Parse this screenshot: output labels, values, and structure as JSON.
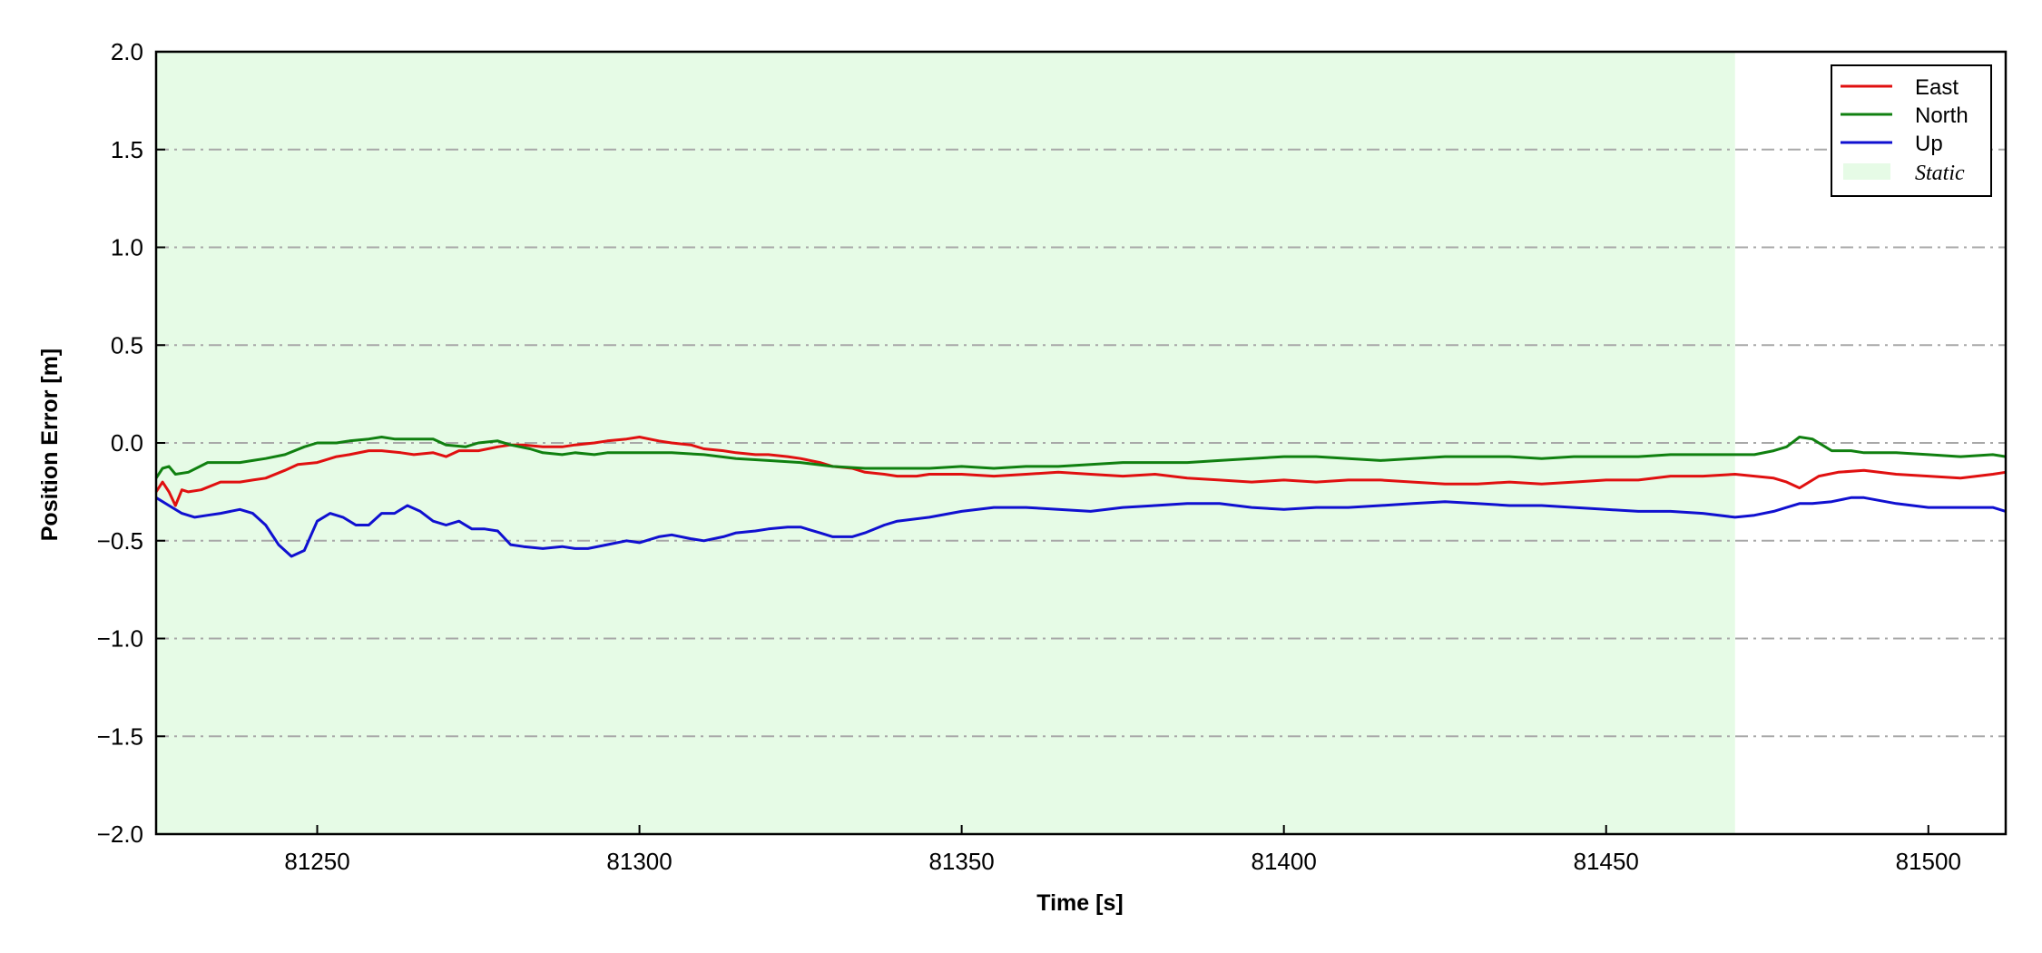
{
  "chart_data": {
    "type": "line",
    "xlabel": "Time [s]",
    "ylabel": "Position Error [m]",
    "xlim": [
      81225,
      81512
    ],
    "ylim": [
      -2.0,
      2.0
    ],
    "x_ticks": [
      "81250",
      "81300",
      "81350",
      "81400",
      "81450",
      "81500"
    ],
    "y_ticks": [
      "2.0",
      "1.5",
      "1.0",
      "0.5",
      "0.0",
      "−0.5",
      "−1.0",
      "−1.5",
      "−2.0"
    ],
    "grid": "horizontal dash-dot",
    "legend_position": "top-right",
    "static_region": {
      "name": "Static",
      "x_start": 81225,
      "x_end": 81470,
      "color": "#e6fbe6"
    },
    "series": [
      {
        "name": "East",
        "color": "#e01010",
        "x": [
          81225,
          81226,
          81227,
          81228,
          81229,
          81230,
          81232,
          81235,
          81238,
          81240,
          81242,
          81245,
          81247,
          81250,
          81253,
          81255,
          81258,
          81260,
          81263,
          81265,
          81268,
          81270,
          81272,
          81275,
          81278,
          81280,
          81282,
          81285,
          81288,
          81290,
          81293,
          81295,
          81298,
          81300,
          81303,
          81305,
          81308,
          81310,
          81313,
          81315,
          81318,
          81320,
          81323,
          81325,
          81328,
          81330,
          81333,
          81335,
          81338,
          81340,
          81343,
          81345,
          81348,
          81350,
          81355,
          81360,
          81365,
          81370,
          81375,
          81380,
          81385,
          81390,
          81395,
          81400,
          81405,
          81410,
          81415,
          81420,
          81425,
          81430,
          81435,
          81440,
          81445,
          81450,
          81455,
          81460,
          81465,
          81470,
          81473,
          81476,
          81478,
          81480,
          81483,
          81486,
          81490,
          81495,
          81500,
          81505,
          81510,
          81512
        ],
        "y": [
          -0.25,
          -0.2,
          -0.25,
          -0.32,
          -0.24,
          -0.25,
          -0.24,
          -0.2,
          -0.2,
          -0.19,
          -0.18,
          -0.14,
          -0.11,
          -0.1,
          -0.07,
          -0.06,
          -0.04,
          -0.04,
          -0.05,
          -0.06,
          -0.05,
          -0.07,
          -0.04,
          -0.04,
          -0.02,
          -0.01,
          -0.01,
          -0.02,
          -0.02,
          -0.01,
          0.0,
          0.01,
          0.02,
          0.03,
          0.01,
          0.0,
          -0.01,
          -0.03,
          -0.04,
          -0.05,
          -0.06,
          -0.06,
          -0.07,
          -0.08,
          -0.1,
          -0.12,
          -0.13,
          -0.15,
          -0.16,
          -0.17,
          -0.17,
          -0.16,
          -0.16,
          -0.16,
          -0.17,
          -0.16,
          -0.15,
          -0.16,
          -0.17,
          -0.16,
          -0.18,
          -0.19,
          -0.2,
          -0.19,
          -0.2,
          -0.19,
          -0.19,
          -0.2,
          -0.21,
          -0.21,
          -0.2,
          -0.21,
          -0.2,
          -0.19,
          -0.19,
          -0.17,
          -0.17,
          -0.16,
          -0.17,
          -0.18,
          -0.2,
          -0.23,
          -0.17,
          -0.15,
          -0.14,
          -0.16,
          -0.17,
          -0.18,
          -0.16,
          -0.15
        ]
      },
      {
        "name": "North",
        "color": "#108010",
        "x": [
          81225,
          81226,
          81227,
          81228,
          81230,
          81233,
          81235,
          81238,
          81240,
          81242,
          81245,
          81248,
          81250,
          81253,
          81255,
          81258,
          81260,
          81262,
          81265,
          81268,
          81270,
          81273,
          81275,
          81278,
          81280,
          81283,
          81285,
          81288,
          81290,
          81293,
          81295,
          81298,
          81300,
          81305,
          81310,
          81315,
          81320,
          81325,
          81330,
          81335,
          81340,
          81345,
          81350,
          81355,
          81360,
          81365,
          81370,
          81375,
          81380,
          81385,
          81390,
          81395,
          81400,
          81405,
          81410,
          81415,
          81420,
          81425,
          81430,
          81435,
          81440,
          81445,
          81450,
          81455,
          81460,
          81465,
          81470,
          81473,
          81476,
          81478,
          81480,
          81482,
          81485,
          81488,
          81490,
          81495,
          81500,
          81505,
          81510,
          81512
        ],
        "y": [
          -0.18,
          -0.13,
          -0.12,
          -0.16,
          -0.15,
          -0.1,
          -0.1,
          -0.1,
          -0.09,
          -0.08,
          -0.06,
          -0.02,
          0.0,
          0.0,
          0.01,
          0.02,
          0.03,
          0.02,
          0.02,
          0.02,
          -0.01,
          -0.02,
          0.0,
          0.01,
          -0.01,
          -0.03,
          -0.05,
          -0.06,
          -0.05,
          -0.06,
          -0.05,
          -0.05,
          -0.05,
          -0.05,
          -0.06,
          -0.08,
          -0.09,
          -0.1,
          -0.12,
          -0.13,
          -0.13,
          -0.13,
          -0.12,
          -0.13,
          -0.12,
          -0.12,
          -0.11,
          -0.1,
          -0.1,
          -0.1,
          -0.09,
          -0.08,
          -0.07,
          -0.07,
          -0.08,
          -0.09,
          -0.08,
          -0.07,
          -0.07,
          -0.07,
          -0.08,
          -0.07,
          -0.07,
          -0.07,
          -0.06,
          -0.06,
          -0.06,
          -0.06,
          -0.04,
          -0.02,
          0.03,
          0.02,
          -0.04,
          -0.04,
          -0.05,
          -0.05,
          -0.06,
          -0.07,
          -0.06,
          -0.07
        ]
      },
      {
        "name": "Up",
        "color": "#1010d0",
        "x": [
          81225,
          81227,
          81229,
          81231,
          81233,
          81235,
          81238,
          81240,
          81242,
          81244,
          81246,
          81248,
          81250,
          81252,
          81254,
          81256,
          81258,
          81260,
          81262,
          81264,
          81266,
          81268,
          81270,
          81272,
          81274,
          81276,
          81278,
          81280,
          81282,
          81285,
          81288,
          81290,
          81292,
          81295,
          81298,
          81300,
          81303,
          81305,
          81308,
          81310,
          81313,
          81315,
          81318,
          81320,
          81323,
          81325,
          81328,
          81330,
          81333,
          81335,
          81338,
          81340,
          81345,
          81350,
          81355,
          81360,
          81365,
          81370,
          81375,
          81380,
          81385,
          81390,
          81395,
          81400,
          81405,
          81410,
          81415,
          81420,
          81425,
          81430,
          81435,
          81440,
          81445,
          81450,
          81455,
          81460,
          81465,
          81470,
          81473,
          81476,
          81478,
          81480,
          81482,
          81485,
          81488,
          81490,
          81495,
          81500,
          81505,
          81510,
          81512
        ],
        "y": [
          -0.28,
          -0.32,
          -0.36,
          -0.38,
          -0.37,
          -0.36,
          -0.34,
          -0.36,
          -0.42,
          -0.52,
          -0.58,
          -0.55,
          -0.4,
          -0.36,
          -0.38,
          -0.42,
          -0.42,
          -0.36,
          -0.36,
          -0.32,
          -0.35,
          -0.4,
          -0.42,
          -0.4,
          -0.44,
          -0.44,
          -0.45,
          -0.52,
          -0.53,
          -0.54,
          -0.53,
          -0.54,
          -0.54,
          -0.52,
          -0.5,
          -0.51,
          -0.48,
          -0.47,
          -0.49,
          -0.5,
          -0.48,
          -0.46,
          -0.45,
          -0.44,
          -0.43,
          -0.43,
          -0.46,
          -0.48,
          -0.48,
          -0.46,
          -0.42,
          -0.4,
          -0.38,
          -0.35,
          -0.33,
          -0.33,
          -0.34,
          -0.35,
          -0.33,
          -0.32,
          -0.31,
          -0.31,
          -0.33,
          -0.34,
          -0.33,
          -0.33,
          -0.32,
          -0.31,
          -0.3,
          -0.31,
          -0.32,
          -0.32,
          -0.33,
          -0.34,
          -0.35,
          -0.35,
          -0.36,
          -0.38,
          -0.37,
          -0.35,
          -0.33,
          -0.31,
          -0.31,
          -0.3,
          -0.28,
          -0.28,
          -0.31,
          -0.33,
          -0.33,
          -0.33,
          -0.35
        ]
      }
    ]
  }
}
